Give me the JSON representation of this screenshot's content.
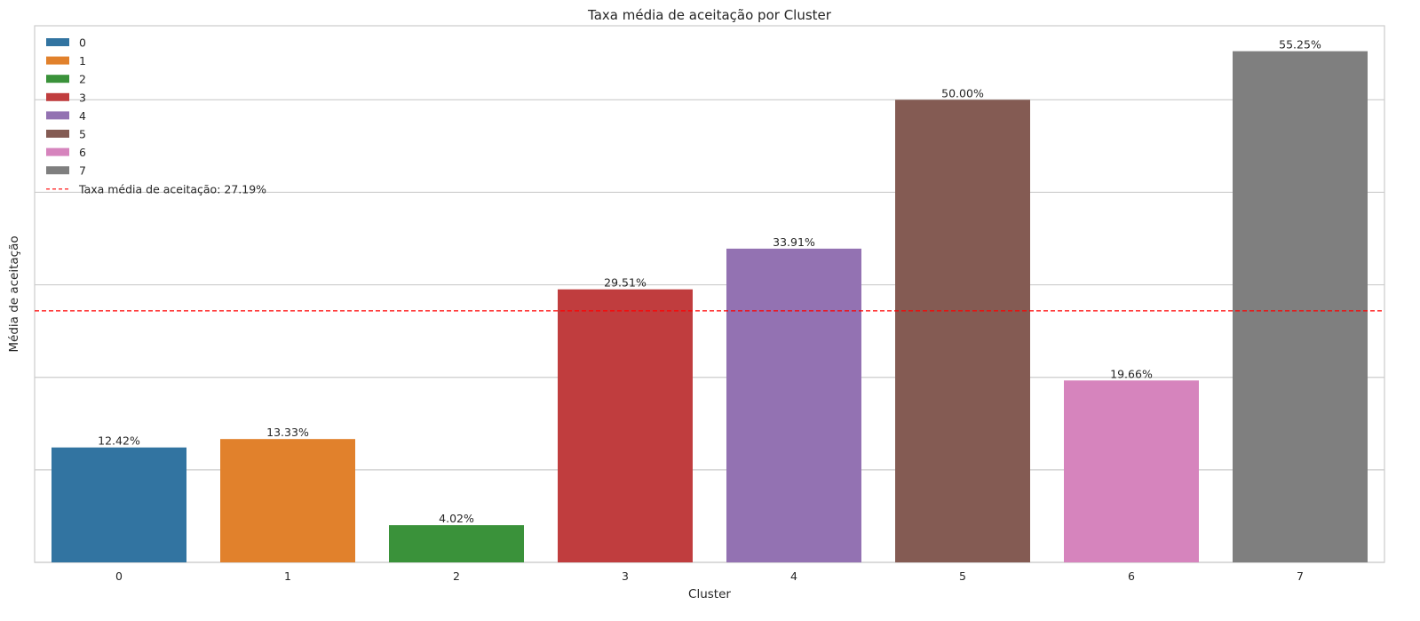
{
  "chart_data": {
    "type": "bar",
    "title": "Taxa média de aceitação por Cluster",
    "xlabel": "Cluster",
    "ylabel": "Média de aceitação",
    "categories": [
      "0",
      "1",
      "2",
      "3",
      "4",
      "5",
      "6",
      "7"
    ],
    "values": [
      12.42,
      13.33,
      4.02,
      29.51,
      33.91,
      50.0,
      19.66,
      55.25
    ],
    "value_labels": [
      "12.42%",
      "13.33%",
      "4.02%",
      "29.51%",
      "33.91%",
      "50.00%",
      "19.66%",
      "55.25%"
    ],
    "colors": [
      "#3274a1",
      "#e1812c",
      "#3a923a",
      "#c03d3e",
      "#9372b2",
      "#845b53",
      "#d684bd",
      "#7f7f7f"
    ],
    "ylim": [
      0,
      58
    ],
    "grid": true,
    "y_gridlines": [
      0,
      10,
      20,
      30,
      40,
      50
    ],
    "reference_line": {
      "value": 27.19,
      "label": "Taxa média de aceitação: 27.19%",
      "color": "#ff0000",
      "style": "dashed"
    },
    "legend": {
      "placement": "top-left",
      "entries": [
        "0",
        "1",
        "2",
        "3",
        "4",
        "5",
        "6",
        "7"
      ]
    }
  }
}
